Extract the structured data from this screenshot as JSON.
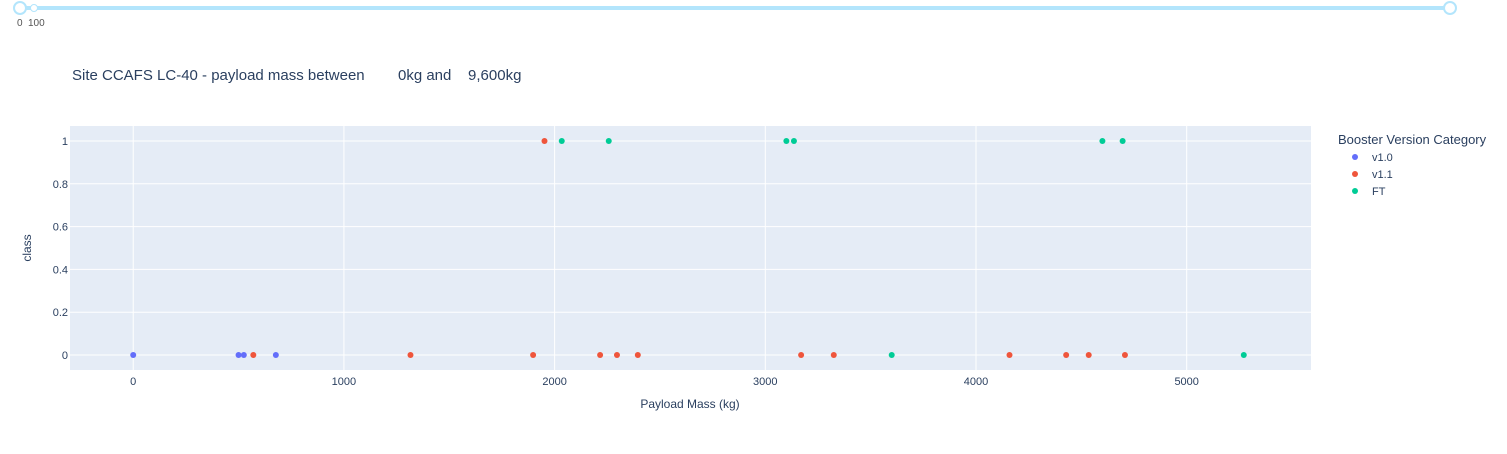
{
  "slider": {
    "marks": [
      "0",
      "100"
    ],
    "value_start": 0,
    "value_end": 9600
  },
  "title": {
    "prefix": "Site CCAFS LC-40 - payload mass between",
    "min_text": "0kg and",
    "max_text": "9,600kg"
  },
  "colors": {
    "plot_bg": "#e5ecf6",
    "grid": "#ffffff",
    "axis_text": "#2a3f5f",
    "v1.0": "#636efa",
    "v1.1": "#ef553b",
    "FT": "#00cc96"
  },
  "chart_data": {
    "type": "scatter",
    "title": "",
    "xlabel": "Payload Mass (kg)",
    "ylabel": "class",
    "xlim": [
      -300,
      5590
    ],
    "ylim": [
      -0.07,
      1.07
    ],
    "xticks": [
      0,
      1000,
      2000,
      3000,
      4000,
      5000
    ],
    "yticks": [
      0,
      0.2,
      0.4,
      0.6,
      0.8,
      1
    ],
    "xtick_labels": [
      "0",
      "1000",
      "2000",
      "3000",
      "4000",
      "5000"
    ],
    "ytick_labels": [
      "0",
      "0.2",
      "0.4",
      "0.6",
      "0.8",
      "1"
    ],
    "grid": true,
    "legend": {
      "title": "Booster Version Category",
      "placement": "top-right",
      "entries": [
        "v1.0",
        "v1.1",
        "FT"
      ]
    },
    "series": [
      {
        "name": "v1.0",
        "points": [
          [
            0,
            0
          ],
          [
            500,
            0
          ],
          [
            525,
            0
          ],
          [
            677,
            0
          ]
        ]
      },
      {
        "name": "v1.1",
        "points": [
          [
            570,
            0
          ],
          [
            1316,
            0
          ],
          [
            1898,
            0
          ],
          [
            1952,
            1
          ],
          [
            2216,
            0
          ],
          [
            2296,
            0
          ],
          [
            2395,
            0
          ],
          [
            3170,
            0
          ],
          [
            3325,
            0
          ],
          [
            4159,
            0
          ],
          [
            4428,
            0
          ],
          [
            4535,
            0
          ],
          [
            4707,
            0
          ]
        ]
      },
      {
        "name": "FT",
        "points": [
          [
            2034,
            1
          ],
          [
            2257,
            1
          ],
          [
            3100,
            1
          ],
          [
            3136,
            1
          ],
          [
            3600,
            0
          ],
          [
            4600,
            1
          ],
          [
            4696,
            1
          ],
          [
            5271,
            0
          ]
        ]
      }
    ]
  }
}
